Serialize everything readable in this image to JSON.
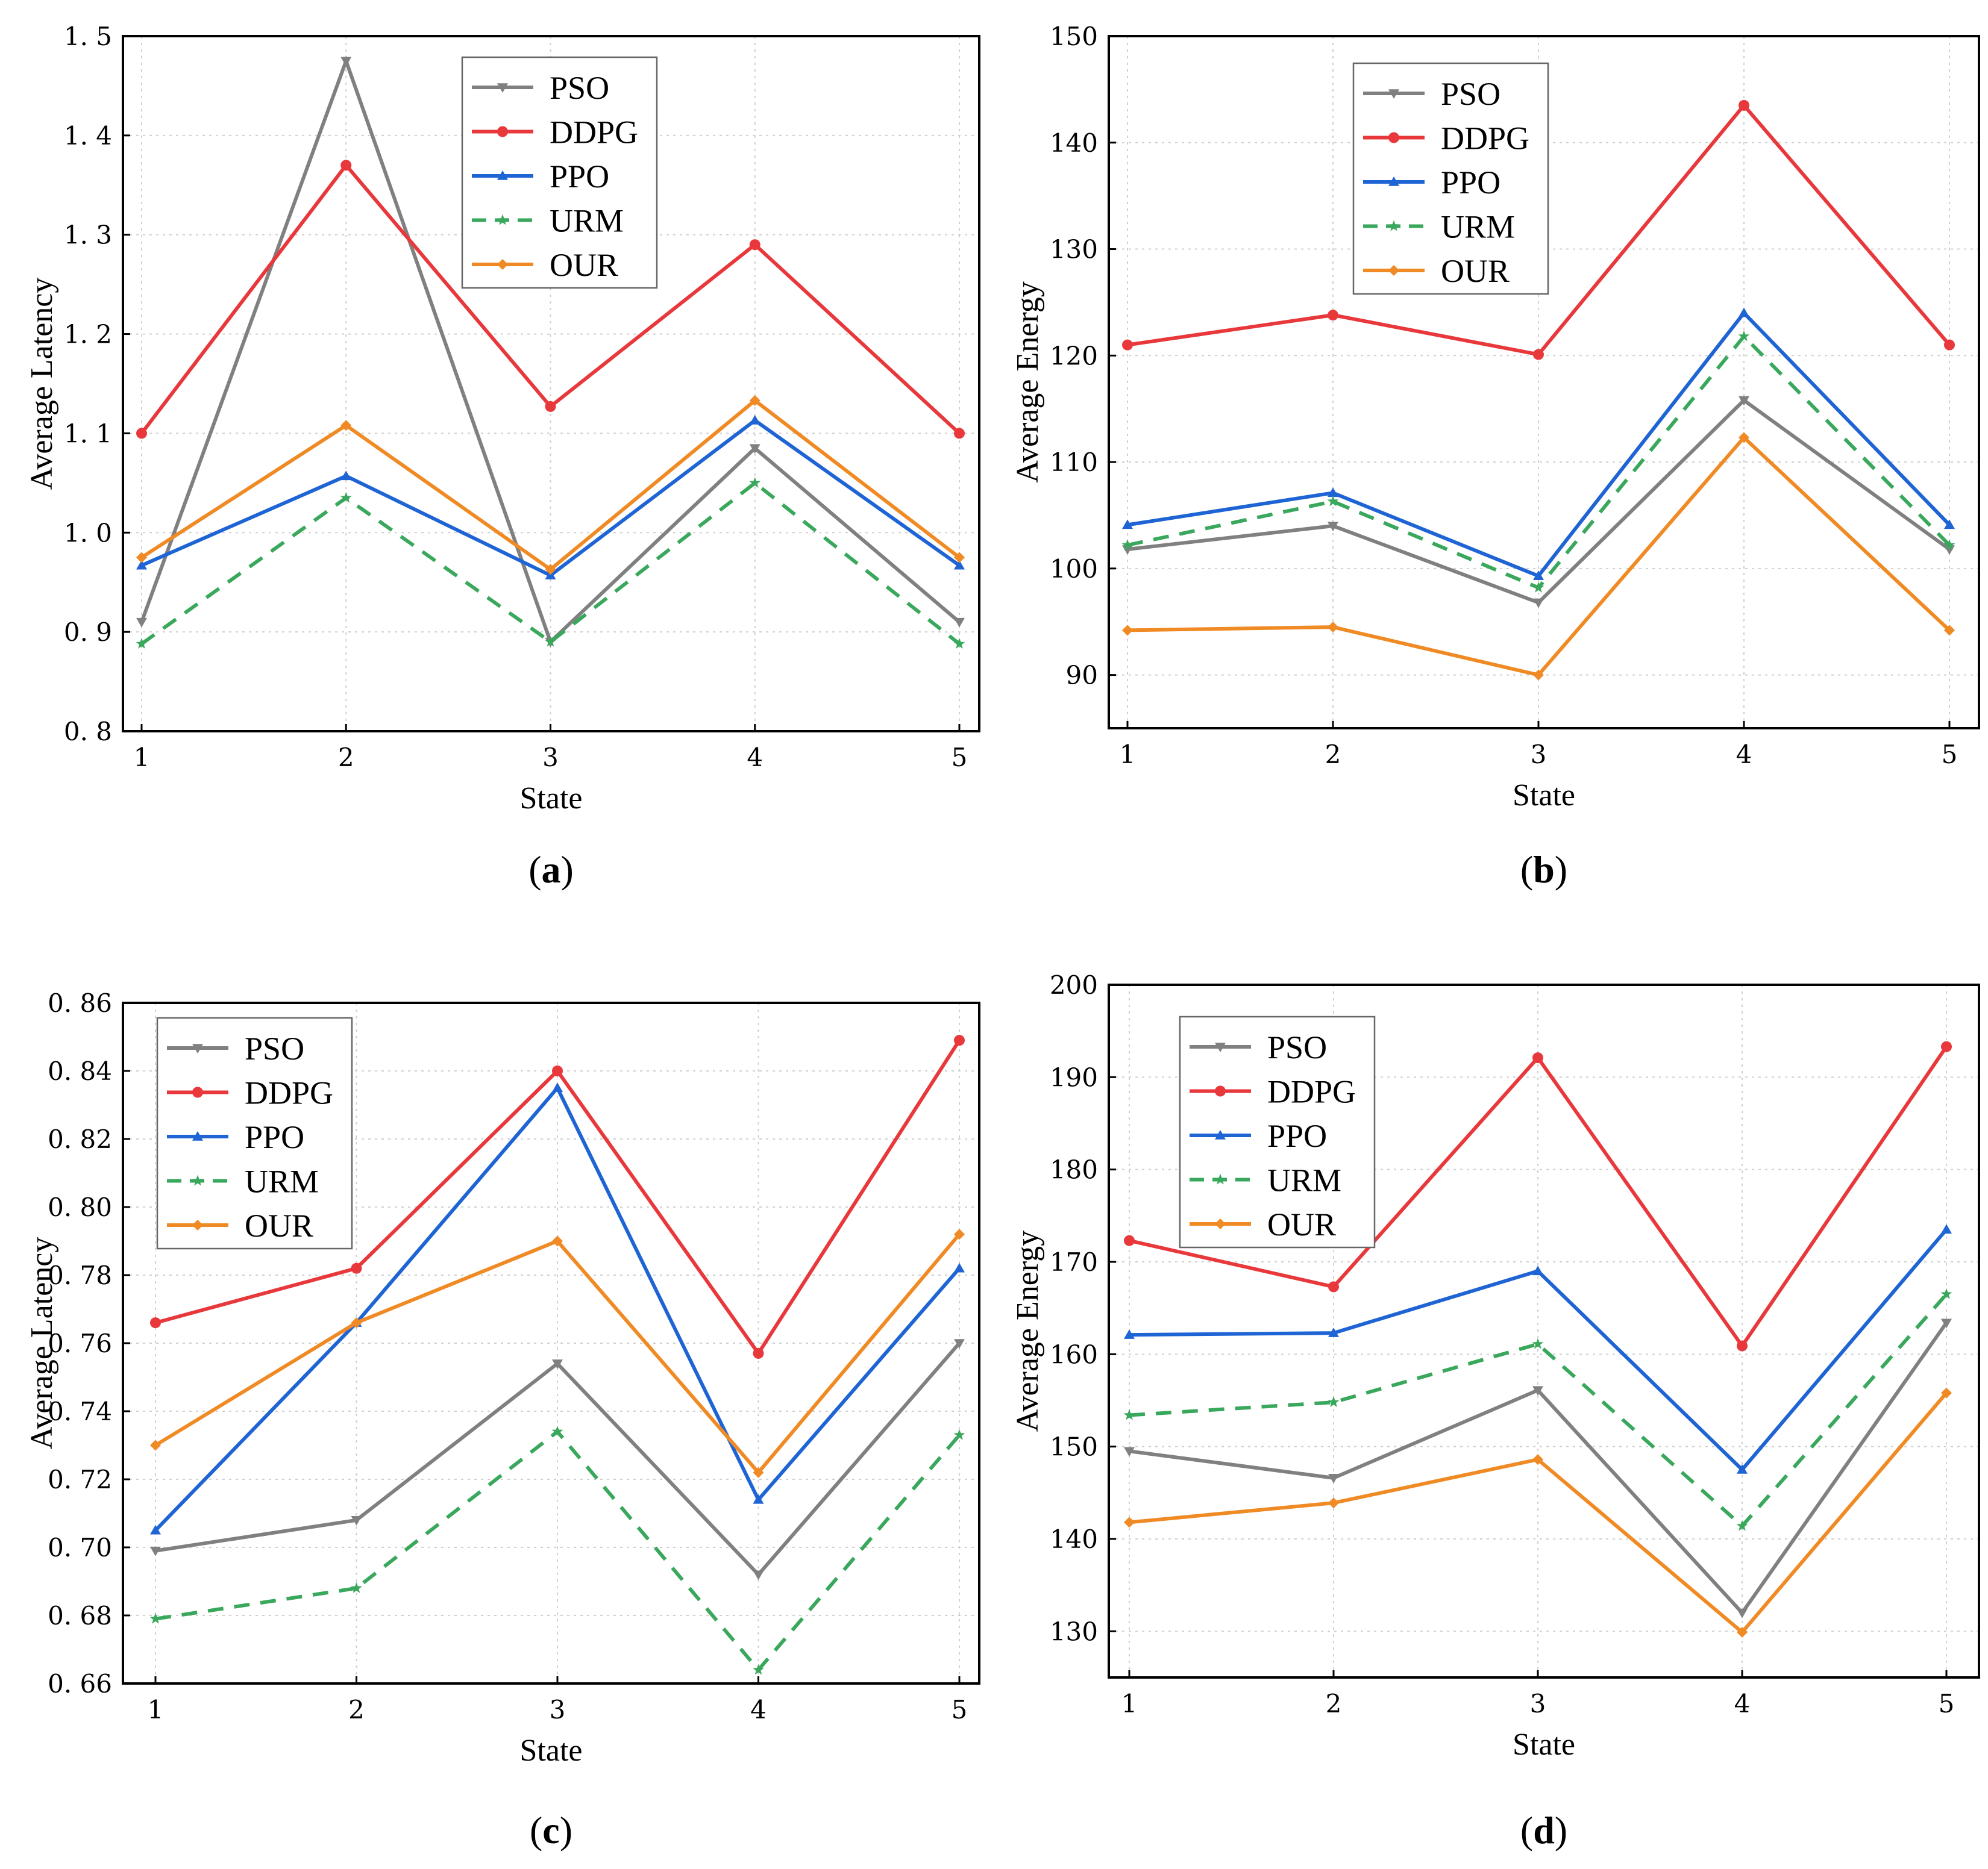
{
  "colors": {
    "PSO": "#808080",
    "DDPG": "#e8383b",
    "PPO": "#1f64d4",
    "URM": "#3aa85c",
    "OUR": "#f08a24"
  },
  "chart_data": [
    {
      "id": "a",
      "type": "line",
      "caption_letter": "a",
      "xlabel": "State",
      "ylabel": "Average Latency",
      "x": [
        1,
        2,
        3,
        4,
        5
      ],
      "xticks": [
        "1",
        "2",
        "3",
        "4",
        "5"
      ],
      "ylim": [
        0.8,
        1.5
      ],
      "yticks": [
        "0. 8",
        "0. 9",
        "1. 0",
        "1. 1",
        "1. 2",
        "1. 3",
        "1. 4",
        "1. 5"
      ],
      "ytick_values": [
        0.8,
        0.9,
        1.0,
        1.1,
        1.2,
        1.3,
        1.4,
        1.5
      ],
      "grid": true,
      "legend_position": "top-center",
      "series": [
        {
          "name": "PSO",
          "marker": "triangle-down",
          "style": "solid",
          "values": [
            0.91,
            1.475,
            0.89,
            1.085,
            0.91
          ]
        },
        {
          "name": "DDPG",
          "marker": "circle",
          "style": "solid",
          "values": [
            1.1,
            1.37,
            1.127,
            1.29,
            1.1
          ]
        },
        {
          "name": "PPO",
          "marker": "triangle-up",
          "style": "solid",
          "values": [
            0.967,
            1.057,
            0.957,
            1.113,
            0.967
          ]
        },
        {
          "name": "URM",
          "marker": "star",
          "style": "dashed",
          "values": [
            0.888,
            1.035,
            0.89,
            1.05,
            0.888
          ]
        },
        {
          "name": "OUR",
          "marker": "diamond",
          "style": "solid",
          "values": [
            0.975,
            1.108,
            0.963,
            1.133,
            0.975
          ]
        }
      ]
    },
    {
      "id": "b",
      "type": "line",
      "caption_letter": "b",
      "xlabel": "State",
      "ylabel": "Average Energy",
      "x": [
        1,
        2,
        3,
        4,
        5
      ],
      "xticks": [
        "1",
        "2",
        "3",
        "4",
        "5"
      ],
      "ylim": [
        85,
        150
      ],
      "yticks": [
        "90",
        "100",
        "110",
        "120",
        "130",
        "140",
        "150"
      ],
      "ytick_values": [
        90,
        100,
        110,
        120,
        130,
        140,
        150
      ],
      "grid": true,
      "legend_position": "top-center",
      "series": [
        {
          "name": "PSO",
          "marker": "triangle-down",
          "style": "solid",
          "values": [
            101.8,
            104.0,
            96.8,
            115.8,
            101.8
          ]
        },
        {
          "name": "DDPG",
          "marker": "circle",
          "style": "solid",
          "values": [
            121.0,
            123.8,
            120.1,
            143.5,
            121.0
          ]
        },
        {
          "name": "PPO",
          "marker": "triangle-up",
          "style": "solid",
          "values": [
            104.1,
            107.1,
            99.3,
            124.0,
            104.1
          ]
        },
        {
          "name": "URM",
          "marker": "star",
          "style": "dashed",
          "values": [
            102.2,
            106.3,
            98.2,
            121.8,
            102.2
          ]
        },
        {
          "name": "OUR",
          "marker": "diamond",
          "style": "solid",
          "values": [
            94.2,
            94.5,
            90.0,
            112.3,
            94.2
          ]
        }
      ]
    },
    {
      "id": "c",
      "type": "line",
      "caption_letter": "c",
      "xlabel": "State",
      "ylabel": "Average Latency",
      "x": [
        1,
        2,
        3,
        4,
        5
      ],
      "xticks": [
        "1",
        "2",
        "3",
        "4",
        "5"
      ],
      "ylim": [
        0.66,
        0.86
      ],
      "yticks": [
        "0. 66",
        "0. 68",
        "0. 70",
        "0. 72",
        "0. 74",
        "0. 76",
        "0. 78",
        "0. 80",
        "0. 82",
        "0. 84",
        "0. 86"
      ],
      "ytick_values": [
        0.66,
        0.68,
        0.7,
        0.72,
        0.74,
        0.76,
        0.78,
        0.8,
        0.82,
        0.84,
        0.86
      ],
      "grid": true,
      "legend_position": "top-left",
      "series": [
        {
          "name": "PSO",
          "marker": "triangle-down",
          "style": "solid",
          "values": [
            0.699,
            0.708,
            0.754,
            0.692,
            0.76
          ]
        },
        {
          "name": "DDPG",
          "marker": "circle",
          "style": "solid",
          "values": [
            0.766,
            0.782,
            0.84,
            0.757,
            0.849
          ]
        },
        {
          "name": "PPO",
          "marker": "triangle-up",
          "style": "solid",
          "values": [
            0.705,
            0.766,
            0.835,
            0.714,
            0.782
          ]
        },
        {
          "name": "URM",
          "marker": "star",
          "style": "dashed",
          "values": [
            0.679,
            0.688,
            0.734,
            0.664,
            0.733
          ]
        },
        {
          "name": "OUR",
          "marker": "diamond",
          "style": "solid",
          "values": [
            0.73,
            0.766,
            0.79,
            0.722,
            0.792
          ]
        }
      ]
    },
    {
      "id": "d",
      "type": "line",
      "caption_letter": "d",
      "xlabel": "State",
      "ylabel": "Average Energy",
      "x": [
        1,
        2,
        3,
        4,
        5
      ],
      "xticks": [
        "1",
        "2",
        "3",
        "4",
        "5"
      ],
      "ylim": [
        125,
        200
      ],
      "yticks": [
        "130",
        "140",
        "150",
        "160",
        "170",
        "180",
        "190",
        "200"
      ],
      "ytick_values": [
        130,
        140,
        150,
        160,
        170,
        180,
        190,
        200
      ],
      "grid": true,
      "legend_position": "top-left",
      "series": [
        {
          "name": "PSO",
          "marker": "triangle-down",
          "style": "solid",
          "values": [
            149.5,
            146.6,
            156.1,
            132.0,
            163.4
          ]
        },
        {
          "name": "DDPG",
          "marker": "circle",
          "style": "solid",
          "values": [
            172.3,
            167.3,
            192.1,
            160.9,
            193.3
          ]
        },
        {
          "name": "PPO",
          "marker": "triangle-up",
          "style": "solid",
          "values": [
            162.1,
            162.3,
            169.0,
            147.5,
            173.5
          ]
        },
        {
          "name": "URM",
          "marker": "star",
          "style": "dashed",
          "values": [
            153.4,
            154.8,
            161.1,
            141.4,
            166.5
          ]
        },
        {
          "name": "OUR",
          "marker": "diamond",
          "style": "solid",
          "values": [
            141.8,
            143.9,
            148.6,
            129.9,
            155.8
          ]
        }
      ]
    }
  ]
}
